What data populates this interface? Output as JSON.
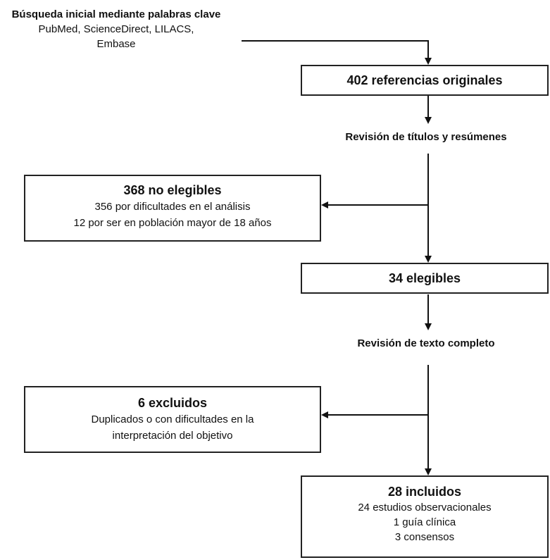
{
  "search": {
    "title": "Búsqueda inicial mediante palabras clave",
    "databases_line1": "PubMed, ScienceDirect, LILACS,",
    "databases_line2": "Embase"
  },
  "step1": {
    "title": "402 referencias originales"
  },
  "review1": {
    "label": "Revisión de títulos y resúmenes"
  },
  "not_eligible": {
    "title": "368 no elegibles",
    "line1": "356 por dificultades en el análisis",
    "line2": "12 por ser en población mayor de 18 años"
  },
  "step2": {
    "title": "34 elegibles"
  },
  "review2": {
    "label": "Revisión de texto completo"
  },
  "excluded": {
    "title": "6 excluidos",
    "line1": "Duplicados o con dificultades en la",
    "line2": "interpretación del objetivo"
  },
  "included": {
    "title": "28 incluidos",
    "line1": "24 estudios observacionales",
    "line2": "1 guía clínica",
    "line3": "3 consensos"
  }
}
